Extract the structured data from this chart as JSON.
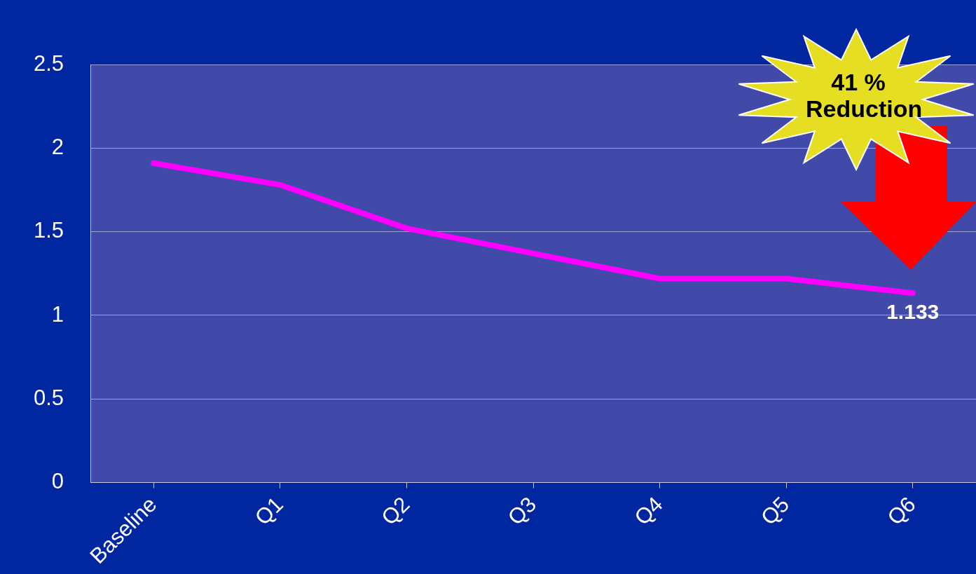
{
  "chart_data": {
    "type": "line",
    "categories": [
      "Baseline",
      "Q1",
      "Q2",
      "Q3",
      "Q4",
      "Q5",
      "Q6"
    ],
    "series": [
      {
        "color": "#ff00ff",
        "values": [
          1.91,
          1.78,
          1.52,
          1.37,
          1.22,
          1.22,
          1.133
        ],
        "value_labels": [
          null,
          null,
          null,
          null,
          null,
          null,
          "1.133"
        ]
      }
    ],
    "ylim": [
      0,
      2.5
    ],
    "yticks": [
      0,
      0.5,
      1,
      1.5,
      2,
      2.5
    ],
    "grid": "y",
    "legend": false,
    "marker": "none",
    "line_style": "solid",
    "annotations": [
      "41 % Reduction"
    ]
  }
}
